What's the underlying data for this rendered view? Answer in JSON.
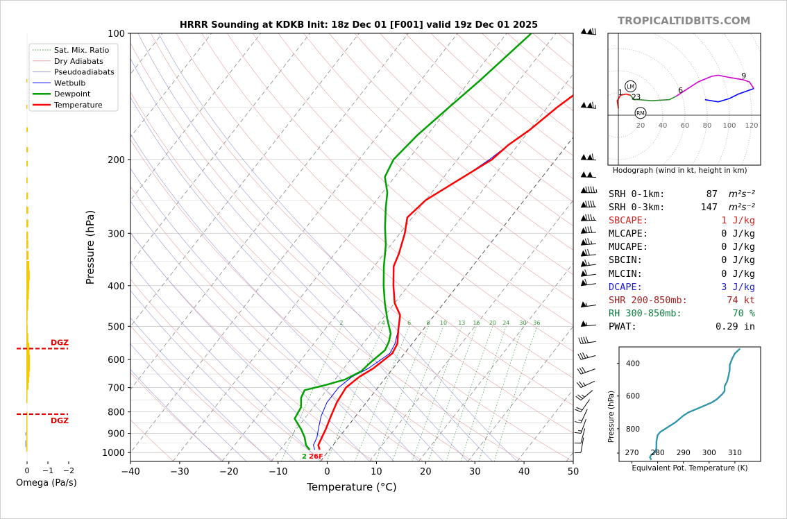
{
  "title": "HRRR Sounding at KDKB Init: 18z Dec 01 [F001] valid 19z Dec 01 2025",
  "brand": "TROPICALTIDBITS.COM",
  "chart_data": [
    {
      "type": "line",
      "name": "skewt",
      "xlabel": "Temperature (°C)",
      "ylabel": "Pressure (hPa)",
      "xlim": [
        -40,
        50
      ],
      "ylim": [
        1050,
        100
      ],
      "yscale": "log",
      "xticks": [
        "−40",
        "−30",
        "−20",
        "−10",
        "0",
        "10",
        "20",
        "30",
        "40",
        "50"
      ],
      "yticks": [
        1000,
        900,
        800,
        700,
        600,
        500,
        400,
        300,
        200,
        100
      ],
      "legend_position": "top-left",
      "legend": [
        "Sat. Mix. Ratio",
        "Dry Adiabats",
        "Pseudoadiabats",
        "Wetbulb",
        "Dewpoint",
        "Temperature"
      ],
      "mixing_ratio_labels": [
        "2",
        "4",
        "6",
        "8",
        "10",
        "13",
        "16",
        "20",
        "24",
        "30",
        "36"
      ],
      "series": [
        {
          "name": "Temperature",
          "color": "#ff0000",
          "points": [
            [
              -2,
              985
            ],
            [
              -3,
              960
            ],
            [
              -3.5,
              920
            ],
            [
              -4,
              880
            ],
            [
              -5,
              820
            ],
            [
              -6,
              760
            ],
            [
              -6.5,
              700
            ],
            [
              -5.5,
              660
            ],
            [
              -4,
              630
            ],
            [
              -2.5,
              580
            ],
            [
              -3,
              550
            ],
            [
              -5,
              510
            ],
            [
              -7,
              470
            ],
            [
              -10,
              440
            ],
            [
              -13,
              400
            ],
            [
              -16,
              360
            ],
            [
              -17,
              335
            ],
            [
              -19,
              300
            ],
            [
              -21,
              275
            ],
            [
              -20,
              250
            ],
            [
              -16,
              220
            ],
            [
              -13,
              200
            ],
            [
              -12,
              185
            ],
            [
              -10,
              170
            ],
            [
              -8,
              150
            ],
            [
              -5,
              130
            ],
            [
              -2,
              115
            ],
            [
              1,
              100
            ]
          ]
        },
        {
          "name": "Dewpoint",
          "color": "#00a000",
          "points": [
            [
              -4,
              985
            ],
            [
              -5.5,
              960
            ],
            [
              -7,
              920
            ],
            [
              -9,
              880
            ],
            [
              -12,
              830
            ],
            [
              -12.5,
              780
            ],
            [
              -14,
              740
            ],
            [
              -14.5,
              710
            ],
            [
              -11,
              690
            ],
            [
              -8,
              670
            ],
            [
              -6,
              640
            ],
            [
              -5.5,
              610
            ],
            [
              -4.5,
              570
            ],
            [
              -5,
              545
            ],
            [
              -6,
              520
            ],
            [
              -9,
              480
            ],
            [
              -12,
              440
            ],
            [
              -15,
              400
            ],
            [
              -18,
              360
            ],
            [
              -21,
              320
            ],
            [
              -24,
              290
            ],
            [
              -27,
              260
            ],
            [
              -29,
              240
            ],
            [
              -32,
              220
            ],
            [
              -33,
              200
            ],
            [
              -32,
              175
            ],
            [
              -30,
              150
            ],
            [
              -28,
              130
            ],
            [
              -25,
              100
            ]
          ]
        },
        {
          "name": "Wetbulb",
          "color": "#0000ff",
          "points": [
            [
              -3,
              985
            ],
            [
              -4,
              960
            ],
            [
              -4.5,
              920
            ],
            [
              -5.5,
              880
            ],
            [
              -7,
              820
            ],
            [
              -8,
              760
            ],
            [
              -8,
              700
            ],
            [
              -7,
              660
            ],
            [
              -5,
              630
            ],
            [
              -3,
              580
            ],
            [
              -3.5,
              550
            ],
            [
              -5,
              510
            ],
            [
              -7,
              470
            ],
            [
              -10,
              440
            ],
            [
              -13,
              400
            ],
            [
              -16,
              360
            ],
            [
              -17,
              335
            ],
            [
              -19,
              300
            ],
            [
              -21,
              275
            ],
            [
              -20,
              250
            ],
            [
              -16,
              220
            ],
            [
              -13.5,
              200
            ],
            [
              -12,
              185
            ],
            [
              -10,
              170
            ],
            [
              -8,
              150
            ],
            [
              -5,
              130
            ],
            [
              -2,
              115
            ],
            [
              1,
              100
            ]
          ]
        }
      ],
      "annotations": {
        "surface_dewpoint": "2",
        "surface_temperature": "26F"
      }
    },
    {
      "type": "line",
      "name": "hodograph",
      "caption": "Hodograph (wind in kt, height in km)",
      "xticks": [
        "20",
        "40",
        "60",
        "80",
        "100",
        "120"
      ],
      "markers": [
        "LM",
        "RM"
      ],
      "height_labels": [
        {
          "text": "1",
          "u": 2,
          "v": 18
        },
        {
          "text": "2",
          "u": 14,
          "v": 14
        },
        {
          "text": "3",
          "u": 18,
          "v": 14
        },
        {
          "text": "6",
          "u": 56,
          "v": 20
        },
        {
          "text": "9",
          "u": 113,
          "v": 33
        }
      ],
      "storm_motion": {
        "LM": {
          "u": 11,
          "v": 26
        },
        "RM": {
          "u": 20,
          "v": 2
        }
      },
      "segments": [
        {
          "color": "#ff0000",
          "points": [
            [
              0,
              6
            ],
            [
              -1,
              13
            ],
            [
              2,
              18
            ],
            [
              7,
              19
            ],
            [
              11,
              18
            ]
          ]
        },
        {
          "color": "#2e8b2e",
          "points": [
            [
              11,
              18
            ],
            [
              14,
              14
            ],
            [
              18,
              14
            ],
            [
              30,
              13
            ],
            [
              46,
              14
            ],
            [
              52,
              17
            ]
          ]
        },
        {
          "color": "#cc00cc",
          "points": [
            [
              52,
              17
            ],
            [
              58,
              21
            ],
            [
              72,
              30
            ],
            [
              84,
              35
            ],
            [
              90,
              36
            ],
            [
              100,
              34
            ],
            [
              112,
              32
            ],
            [
              118,
              30
            ],
            [
              122,
              24
            ]
          ]
        },
        {
          "color": "#0000ff",
          "points": [
            [
              122,
              24
            ],
            [
              108,
              19
            ],
            [
              100,
              15
            ],
            [
              90,
              12
            ],
            [
              78,
              14
            ]
          ]
        }
      ]
    },
    {
      "type": "line",
      "name": "theta-e",
      "xlabel": "Equivalent Pot. Temperature (K)",
      "ylabel": "Pressure (hPa)",
      "xlim": [
        265,
        320
      ],
      "ylim": [
        1000,
        300
      ],
      "xticks": [
        "270",
        "280",
        "290",
        "300",
        "310"
      ],
      "yticks": [
        "400",
        "600",
        "800"
      ],
      "series": [
        {
          "name": "",
          "color": "#2e94aa",
          "points": [
            [
              277.5,
              990
            ],
            [
              277,
              975
            ],
            [
              277.5,
              960
            ],
            [
              279,
              945
            ],
            [
              279.5,
              920
            ],
            [
              279.5,
              880
            ],
            [
              280,
              840
            ],
            [
              281,
              820
            ],
            [
              283,
              800
            ],
            [
              285,
              780
            ],
            [
              287,
              760
            ],
            [
              290,
              720
            ],
            [
              292,
              700
            ],
            [
              298,
              660
            ],
            [
              301,
              640
            ],
            [
              303,
              620
            ],
            [
              305,
              590
            ],
            [
              306,
              570
            ],
            [
              306,
              540
            ],
            [
              307,
              510
            ],
            [
              307.5,
              480
            ],
            [
              308,
              440
            ],
            [
              308,
              410
            ],
            [
              309,
              370
            ],
            [
              310,
              340
            ],
            [
              312,
              310
            ]
          ]
        }
      ]
    },
    {
      "type": "bar",
      "name": "omega",
      "xlabel": "Omega (Pa/s)",
      "xticks": [
        "0",
        "−1",
        "−2"
      ],
      "dgz_label": "DGZ",
      "dgz_pressures": [
        565,
        810
      ],
      "values": [
        {
          "p": 130,
          "w": 0.04
        },
        {
          "p": 150,
          "w": 0.05
        },
        {
          "p": 170,
          "w": 0.07
        },
        {
          "p": 190,
          "w": 0.08
        },
        {
          "p": 205,
          "w": 0.07
        },
        {
          "p": 225,
          "w": 0.06
        },
        {
          "p": 245,
          "w": 0.08
        },
        {
          "p": 265,
          "w": 0.09
        },
        {
          "p": 285,
          "w": 0.09
        },
        {
          "p": 305,
          "w": 0.08
        },
        {
          "p": 320,
          "w": 0.09
        },
        {
          "p": 340,
          "w": 0.1
        },
        {
          "p": 360,
          "w": 0.14
        },
        {
          "p": 380,
          "w": 0.16
        },
        {
          "p": 400,
          "w": 0.14
        },
        {
          "p": 420,
          "w": 0.12
        },
        {
          "p": 445,
          "w": 0.09
        },
        {
          "p": 470,
          "w": 0.06
        },
        {
          "p": 495,
          "w": 0.05
        },
        {
          "p": 520,
          "w": 0.06
        },
        {
          "p": 545,
          "w": 0.09
        },
        {
          "p": 575,
          "w": 0.14
        },
        {
          "p": 595,
          "w": 0.15
        },
        {
          "p": 615,
          "w": 0.17
        },
        {
          "p": 635,
          "w": 0.15
        },
        {
          "p": 655,
          "w": 0.13
        },
        {
          "p": 680,
          "w": 0.1
        },
        {
          "p": 705,
          "w": 0.05
        },
        {
          "p": 730,
          "w": 0.02
        },
        {
          "p": 860,
          "w": 0.02
        },
        {
          "p": 940,
          "w": 0.02
        }
      ]
    }
  ],
  "params": [
    {
      "label": "SRH 0-1km:",
      "value": "87",
      "unit": "m²s⁻²",
      "color": "#000000"
    },
    {
      "label": "SRH 0-3km:",
      "value": "147",
      "unit": "m²s⁻²",
      "color": "#000000"
    },
    {
      "label": "SBCAPE:",
      "value": "1 J/kg",
      "color": "#d02020"
    },
    {
      "label": "MLCAPE:",
      "value": "0 J/kg",
      "color": "#000000"
    },
    {
      "label": "MUCAPE:",
      "value": "0 J/kg",
      "color": "#000000"
    },
    {
      "label": "SBCIN:",
      "value": "0 J/kg",
      "color": "#000000"
    },
    {
      "label": "MLCIN:",
      "value": "0 J/kg",
      "color": "#000000"
    },
    {
      "label": "DCAPE:",
      "value": "3 J/kg",
      "color": "#2020d0"
    },
    {
      "label": "SHR 200-850mb:",
      "value": "74 kt",
      "color": "#a02020"
    },
    {
      "label": "RH 300-850mb:",
      "value": "70 %",
      "color": "#108040"
    },
    {
      "label": "PWAT:",
      "value": "0.29 in",
      "color": "#000000"
    }
  ],
  "wind_barbs": [
    {
      "p": 100,
      "spd": 120,
      "dir": 275
    },
    {
      "p": 150,
      "spd": 115,
      "dir": 275
    },
    {
      "p": 200,
      "spd": 110,
      "dir": 272
    },
    {
      "p": 220,
      "spd": 100,
      "dir": 272
    },
    {
      "p": 240,
      "spd": 95,
      "dir": 270
    },
    {
      "p": 260,
      "spd": 90,
      "dir": 268
    },
    {
      "p": 280,
      "spd": 85,
      "dir": 268
    },
    {
      "p": 300,
      "spd": 80,
      "dir": 266
    },
    {
      "p": 320,
      "spd": 75,
      "dir": 265
    },
    {
      "p": 340,
      "spd": 70,
      "dir": 264
    },
    {
      "p": 360,
      "spd": 65,
      "dir": 262
    },
    {
      "p": 380,
      "spd": 60,
      "dir": 262
    },
    {
      "p": 400,
      "spd": 60,
      "dir": 262
    },
    {
      "p": 450,
      "spd": 55,
      "dir": 262
    },
    {
      "p": 500,
      "spd": 55,
      "dir": 265
    },
    {
      "p": 550,
      "spd": 40,
      "dir": 262
    },
    {
      "p": 600,
      "spd": 35,
      "dir": 255
    },
    {
      "p": 650,
      "spd": 30,
      "dir": 250
    },
    {
      "p": 700,
      "spd": 25,
      "dir": 245
    },
    {
      "p": 750,
      "spd": 25,
      "dir": 230
    },
    {
      "p": 800,
      "spd": 20,
      "dir": 215
    },
    {
      "p": 850,
      "spd": 15,
      "dir": 205
    },
    {
      "p": 900,
      "spd": 15,
      "dir": 200
    },
    {
      "p": 950,
      "spd": 10,
      "dir": 195
    },
    {
      "p": 1000,
      "spd": 10,
      "dir": 190
    }
  ]
}
